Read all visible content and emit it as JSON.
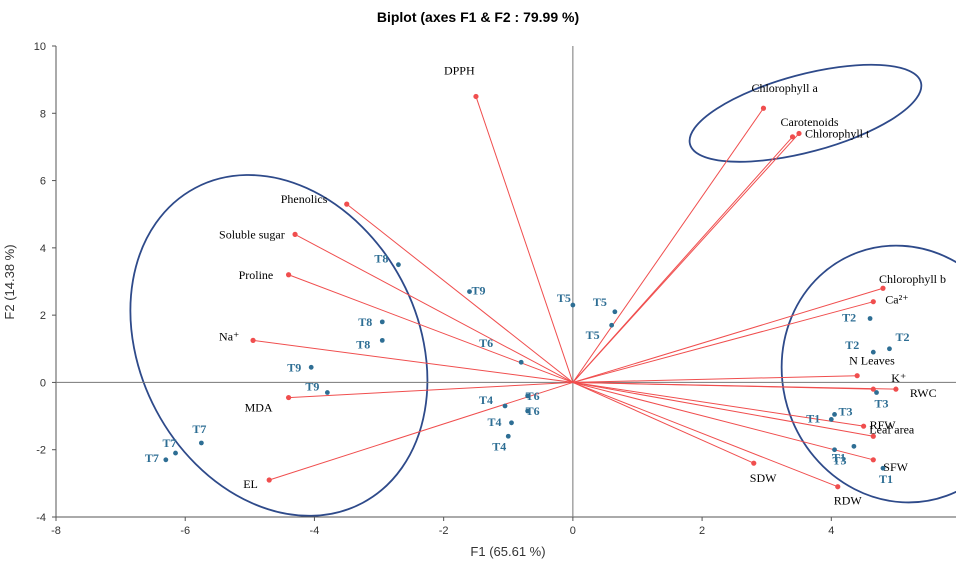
{
  "chart_data": {
    "type": "scatter",
    "title": "Biplot (axes F1 & F2 : 79.99 %)",
    "xlabel": "F1 (65.61 %)",
    "ylabel": "F2 (14.38 %)",
    "xlim": [
      -8,
      6
    ],
    "ylim": [
      -4,
      10
    ],
    "xticks": [
      "-8",
      "-6",
      "-4",
      "-2",
      "0",
      "2",
      "4"
    ],
    "xtick_values": [
      -8,
      -6,
      -4,
      -2,
      0,
      2,
      4
    ],
    "yticks": [
      "10",
      "8",
      "6",
      "4",
      "2",
      "0",
      "-2",
      "-4"
    ],
    "ytick_values": [
      10,
      8,
      6,
      4,
      2,
      0,
      -2,
      -4
    ],
    "grid": false,
    "colors": {
      "variables": "#f04e4e",
      "observations": "#2e6e94",
      "ellipses": "#2e4a8a"
    },
    "variables": [
      {
        "label": "DPPH",
        "x": -1.5,
        "y": 8.5
      },
      {
        "label": "Chlorophyll a",
        "x": 2.95,
        "y": 8.15
      },
      {
        "label": "Carotenoids",
        "x": 3.4,
        "y": 7.3
      },
      {
        "label": "Chlorophyll t",
        "x": 3.5,
        "y": 7.4
      },
      {
        "label": "Phenolics",
        "x": -3.5,
        "y": 5.3
      },
      {
        "label": "Soluble sugar",
        "x": -4.3,
        "y": 4.4
      },
      {
        "label": "Proline",
        "x": -4.4,
        "y": 3.2
      },
      {
        "label": "Na⁺",
        "x": -4.95,
        "y": 1.25
      },
      {
        "label": "MDA",
        "x": -4.4,
        "y": -0.45
      },
      {
        "label": "EL",
        "x": -4.7,
        "y": -2.9
      },
      {
        "label": "Chlorophyll b",
        "x": 4.8,
        "y": 2.8
      },
      {
        "label": "Ca²⁺",
        "x": 4.65,
        "y": 2.4
      },
      {
        "label": "N Leaves",
        "x": 4.4,
        "y": 0.2
      },
      {
        "label": "K⁺",
        "x": 4.65,
        "y": -0.2
      },
      {
        "label": "RWC",
        "x": 5.0,
        "y": -0.2
      },
      {
        "label": "RFW",
        "x": 4.5,
        "y": -1.3
      },
      {
        "label": "Leaf area",
        "x": 4.65,
        "y": -1.6
      },
      {
        "label": "SFW",
        "x": 4.65,
        "y": -2.3
      },
      {
        "label": "SDW",
        "x": 2.8,
        "y": -2.4
      },
      {
        "label": "RDW",
        "x": 4.1,
        "y": -3.1
      }
    ],
    "observations": [
      {
        "label": "T1",
        "x": 4.0,
        "y": -1.1
      },
      {
        "label": "T1",
        "x": 4.35,
        "y": -1.9
      },
      {
        "label": "T1",
        "x": 4.8,
        "y": -2.55
      },
      {
        "label": "T2",
        "x": 4.6,
        "y": 1.9
      },
      {
        "label": "T2",
        "x": 4.65,
        "y": 0.9
      },
      {
        "label": "T2",
        "x": 4.9,
        "y": 1.0
      },
      {
        "label": "T3",
        "x": 4.05,
        "y": -0.95
      },
      {
        "label": "T3",
        "x": 4.7,
        "y": -0.3
      },
      {
        "label": "T3",
        "x": 4.05,
        "y": -2.0
      },
      {
        "label": "T4",
        "x": -1.05,
        "y": -0.7
      },
      {
        "label": "T4",
        "x": -0.95,
        "y": -1.2
      },
      {
        "label": "T4",
        "x": -1.0,
        "y": -1.6
      },
      {
        "label": "T5",
        "x": 0.0,
        "y": 2.3
      },
      {
        "label": "T5",
        "x": 0.65,
        "y": 2.1
      },
      {
        "label": "T5",
        "x": 0.6,
        "y": 1.7
      },
      {
        "label": "T6",
        "x": -0.8,
        "y": 0.6
      },
      {
        "label": "T6",
        "x": -0.7,
        "y": -0.4
      },
      {
        "label": "T6",
        "x": -0.7,
        "y": -0.85
      },
      {
        "label": "T7",
        "x": -5.75,
        "y": -1.8
      },
      {
        "label": "T7",
        "x": -6.15,
        "y": -2.1
      },
      {
        "label": "T7",
        "x": -6.3,
        "y": -2.3
      },
      {
        "label": "T8",
        "x": -2.7,
        "y": 3.5
      },
      {
        "label": "T8",
        "x": -2.95,
        "y": 1.8
      },
      {
        "label": "T8",
        "x": -2.95,
        "y": 1.25
      },
      {
        "label": "T9",
        "x": -1.6,
        "y": 2.7
      },
      {
        "label": "T9",
        "x": -4.05,
        "y": 0.45
      },
      {
        "label": "T9",
        "x": -3.8,
        "y": -0.3
      }
    ],
    "ellipses": [
      {
        "cx": 3.6,
        "cy": 8.0,
        "rx": 1.85,
        "ry": 1.15,
        "angle": -15
      },
      {
        "cx": -4.55,
        "cy": 1.1,
        "rx": 2.15,
        "ry": 5.3,
        "angle": -28
      },
      {
        "cx": 5.1,
        "cy": 0.25,
        "rx": 1.85,
        "ry": 3.85,
        "angle": -20
      }
    ]
  }
}
